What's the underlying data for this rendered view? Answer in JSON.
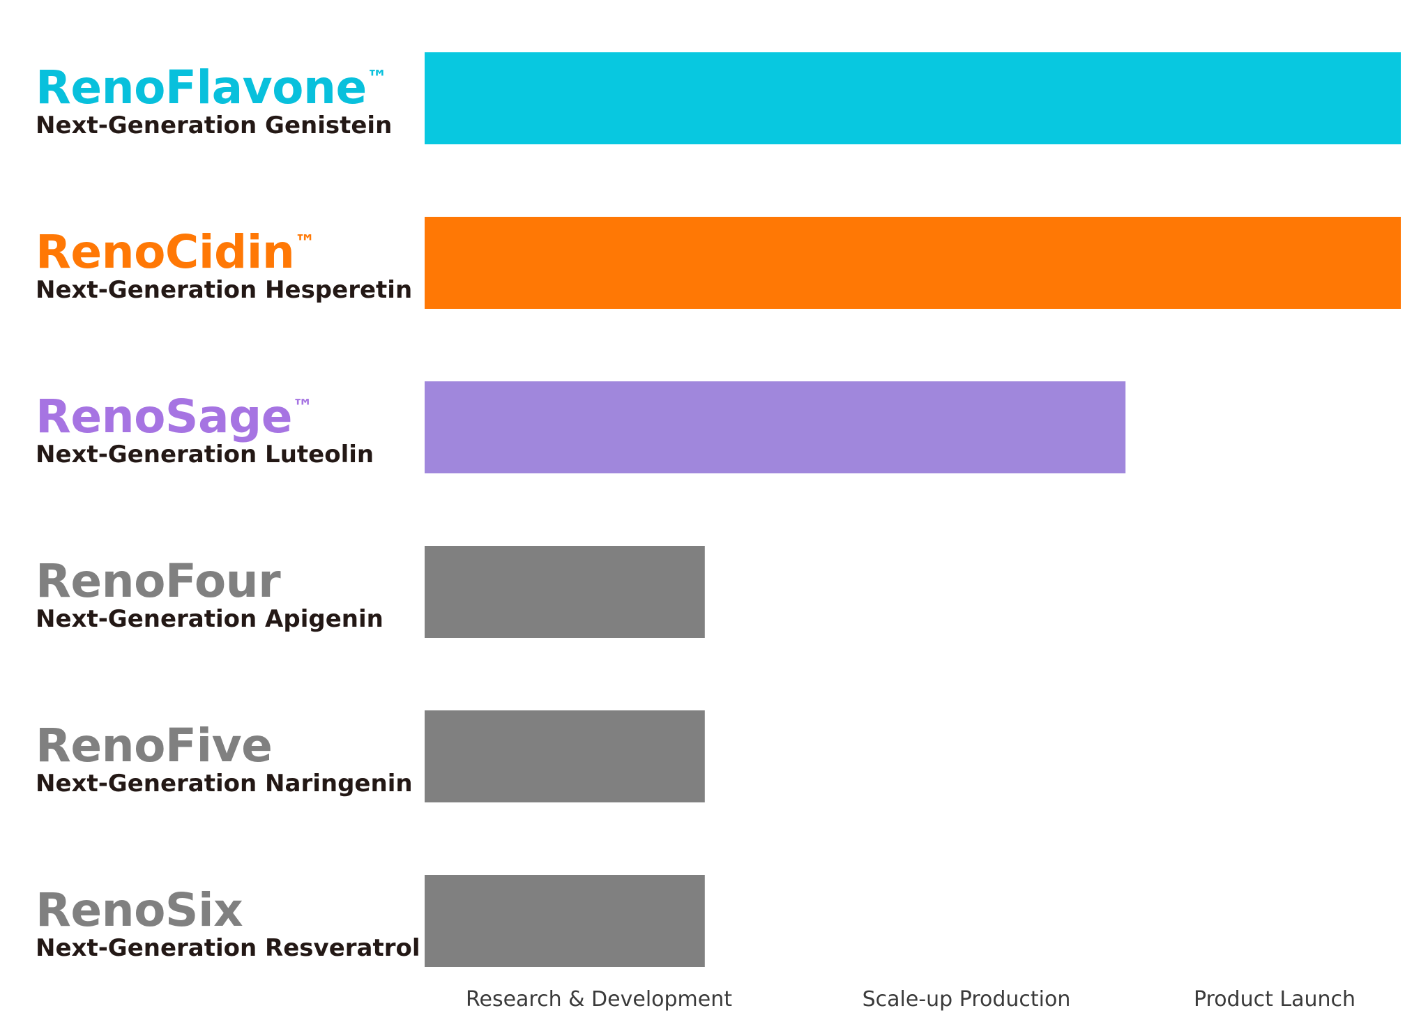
{
  "chart_data": {
    "type": "bar",
    "orientation": "horizontal",
    "stages": [
      "Research & Development",
      "Scale-up Production",
      "Product Launch"
    ],
    "xlim": [
      0,
      1
    ],
    "grid": false,
    "products": [
      {
        "name": "RenoFlavone",
        "tm": "™",
        "subtitle": "Next-Generation Genistein",
        "progress": 1.0,
        "color": "#08c8e0",
        "title_color": "#08c0dc"
      },
      {
        "name": "RenoCidin",
        "tm": "™",
        "subtitle": "Next-Generation Hesperetin",
        "progress": 1.0,
        "color": "#ff7805",
        "title_color": "#ff7805"
      },
      {
        "name": "RenoSage",
        "tm": "™",
        "subtitle": "Next-Generation Luteolin",
        "progress": 0.718,
        "color": "#a087dc",
        "title_color": "#a674e2"
      },
      {
        "name": "RenoFour",
        "tm": "",
        "subtitle": "Next-Generation Apigenin",
        "progress": 0.287,
        "color": "#808080",
        "title_color": "#808080"
      },
      {
        "name": "RenoFive",
        "tm": "",
        "subtitle": "Next-Generation Naringenin",
        "progress": 0.287,
        "color": "#808080",
        "title_color": "#808080"
      },
      {
        "name": "RenoSix",
        "tm": "",
        "subtitle": "Next-Generation Resveratrol",
        "progress": 0.287,
        "color": "#808080",
        "title_color": "#808080"
      }
    ],
    "subtitle_color": "#231815",
    "stage_label_color": "#3a3a3a"
  }
}
